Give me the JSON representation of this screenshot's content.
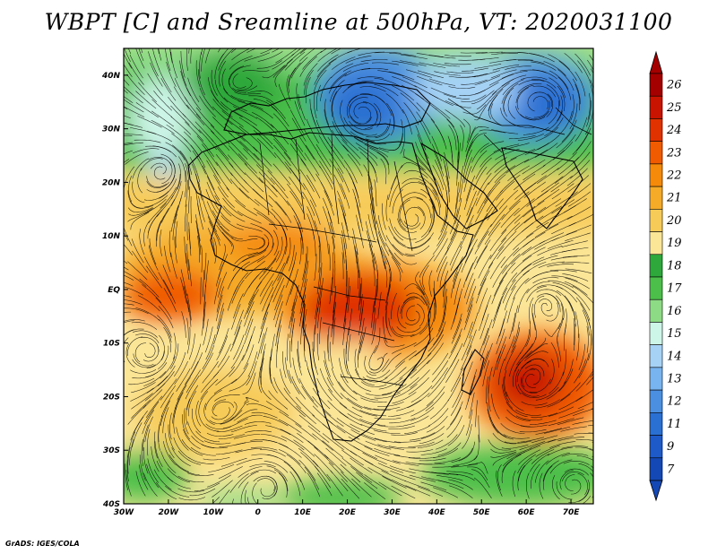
{
  "title": "WBPT [C] and Sreamline at 500hPa, VT: 2020031100",
  "credit": "GrADS: IGES/COLA",
  "lat_ticks": [
    {
      "label": "40N",
      "value": 40
    },
    {
      "label": "30N",
      "value": 30
    },
    {
      "label": "20N",
      "value": 20
    },
    {
      "label": "10N",
      "value": 10
    },
    {
      "label": "EQ",
      "value": 0
    },
    {
      "label": "10S",
      "value": -10
    },
    {
      "label": "20S",
      "value": -20
    },
    {
      "label": "30S",
      "value": -30
    },
    {
      "label": "40S",
      "value": -40
    }
  ],
  "lon_ticks": [
    {
      "label": "30W",
      "value": -30
    },
    {
      "label": "20W",
      "value": -20
    },
    {
      "label": "10W",
      "value": -10
    },
    {
      "label": "0",
      "value": 0
    },
    {
      "label": "10E",
      "value": 10
    },
    {
      "label": "20E",
      "value": 20
    },
    {
      "label": "30E",
      "value": 30
    },
    {
      "label": "40E",
      "value": 40
    },
    {
      "label": "50E",
      "value": 50
    },
    {
      "label": "60E",
      "value": 60
    },
    {
      "label": "70E",
      "value": 70
    }
  ],
  "map_extent": {
    "lon_min": -30,
    "lon_max": 75,
    "lat_min": -40,
    "lat_max": 45
  },
  "colorbar": {
    "labels": [
      "26",
      "25",
      "24",
      "23",
      "22",
      "21",
      "20",
      "19",
      "18",
      "17",
      "16",
      "15",
      "14",
      "13",
      "12",
      "11",
      "9",
      "7"
    ],
    "colors": [
      "#a50000",
      "#c81400",
      "#e03200",
      "#f05a00",
      "#f58a0a",
      "#f5aa28",
      "#f7cb58",
      "#fbe697",
      "#2ea83a",
      "#4cbf4a",
      "#8edb86",
      "#cdf5e8",
      "#a5d2f5",
      "#78b4f0",
      "#4b8fe0",
      "#2a6fd2",
      "#1e5ac8",
      "#1448b4"
    ]
  },
  "streamlines": "500hPa",
  "variable": "WBPT [C]"
}
